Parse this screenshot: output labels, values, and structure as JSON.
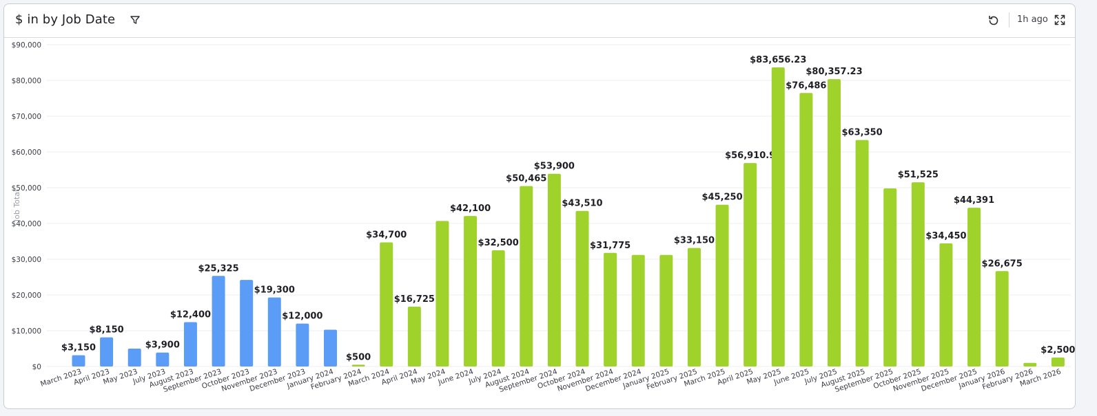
{
  "header": {
    "title": "$ in by Job Date",
    "time_ago": "1h ago"
  },
  "icons": {
    "filter": "filter-icon",
    "refresh": "refresh-icon",
    "expand": "expand-icon"
  },
  "colors": {
    "series_2023": "#5b9cf7",
    "series_later": "#9fd22b",
    "grid": "#ececf1",
    "axis_text": "#3a3c44",
    "label_text": "#1e1f24"
  },
  "chart_data": {
    "type": "bar",
    "ylabel": "Job Total",
    "xlabel": "",
    "ylim": [
      0,
      90000
    ],
    "y_ticks": [
      {
        "value": 0,
        "label": "$0"
      },
      {
        "value": 10000,
        "label": "$10,000"
      },
      {
        "value": 20000,
        "label": "$20,000"
      },
      {
        "value": 30000,
        "label": "$30,000"
      },
      {
        "value": 40000,
        "label": "$40,000"
      },
      {
        "value": 50000,
        "label": "$50,000"
      },
      {
        "value": 60000,
        "label": "$60,000"
      },
      {
        "value": 70000,
        "label": "$70,000"
      },
      {
        "value": 80000,
        "label": "$80,000"
      },
      {
        "value": 90000,
        "label": "$90,000"
      }
    ],
    "grid": true,
    "categories": [
      "March 2023",
      "April 2023",
      "May 2023",
      "July 2023",
      "August 2023",
      "September 2023",
      "October 2023",
      "November 2023",
      "December 2023",
      "January 2024",
      "February 2024",
      "March 2024",
      "April 2024",
      "May 2024",
      "June 2024",
      "July 2024",
      "August 2024",
      "September 2024",
      "October 2024",
      "November 2024",
      "December 2024",
      "January 2025",
      "February 2025",
      "March 2025",
      "April 2025",
      "May 2025",
      "June 2025",
      "July 2025",
      "August 2025",
      "September 2025",
      "October 2025",
      "November 2025",
      "December 2025",
      "January 2026",
      "February 2026",
      "March 2026"
    ],
    "values": [
      3150,
      8150,
      5000,
      3900,
      12400,
      25325,
      24200,
      19300,
      12000,
      10300,
      500,
      34700,
      16725,
      40700,
      42100,
      32500,
      50465,
      53900,
      43510,
      31775,
      31200,
      31200,
      33150,
      45250,
      56910.9,
      83656.23,
      76486,
      80357.23,
      63350,
      49800,
      51525,
      34450,
      44391,
      26675,
      1000,
      2500
    ],
    "data_labels": [
      "$3,150",
      "$8,150",
      "",
      "$3,900",
      "$12,400",
      "$25,325",
      "",
      "$19,300",
      "$12,000",
      "",
      "$500",
      "$34,700",
      "$16,725",
      "",
      "$42,100",
      "$32,500",
      "$50,465",
      "$53,900",
      "$43,510",
      "$31,775",
      "",
      "",
      "$33,150",
      "$45,250",
      "$56,910.9",
      "$83,656.23",
      "$76,486",
      "$80,357.23",
      "$63,350",
      "",
      "$51,525",
      "$34,450",
      "$44,391",
      "$26,675",
      "",
      "$2,500"
    ],
    "bar_colors": [
      "blue",
      "blue",
      "blue",
      "blue",
      "blue",
      "blue",
      "blue",
      "blue",
      "blue",
      "blue",
      "green",
      "green",
      "green",
      "green",
      "green",
      "green",
      "green",
      "green",
      "green",
      "green",
      "green",
      "green",
      "green",
      "green",
      "green",
      "green",
      "green",
      "green",
      "green",
      "green",
      "green",
      "green",
      "green",
      "green",
      "green",
      "green"
    ]
  }
}
